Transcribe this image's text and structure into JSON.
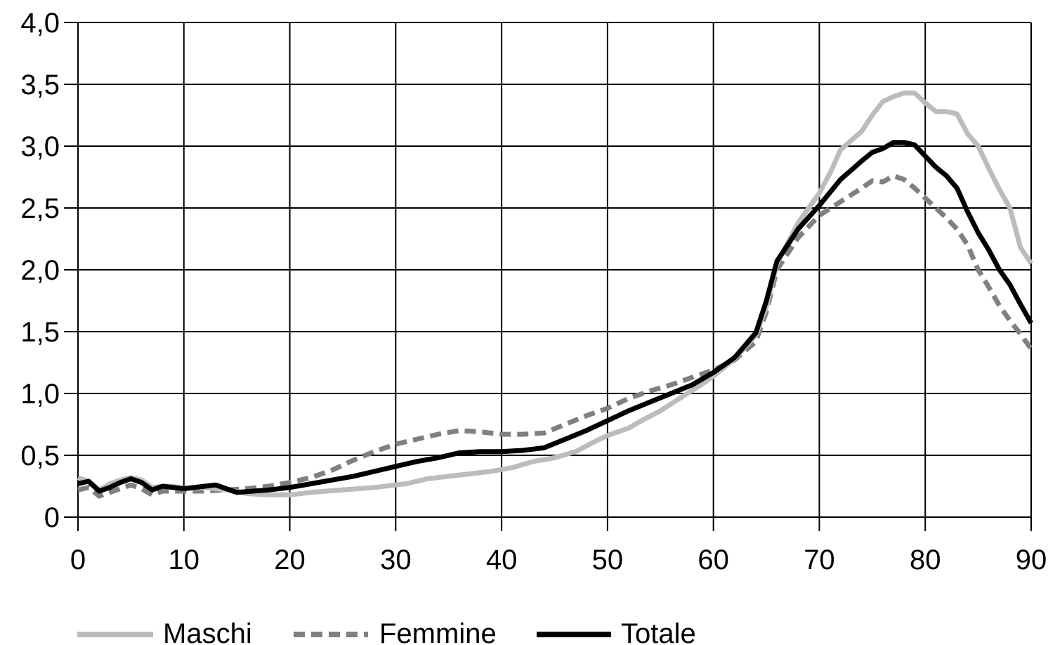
{
  "chart_data": {
    "type": "line",
    "title": "",
    "xlabel": "",
    "ylabel": "",
    "xlim": [
      0,
      90
    ],
    "ylim": [
      0,
      4.0
    ],
    "grid": true,
    "legend_position": "bottom",
    "x_ticks": [
      0,
      10,
      20,
      30,
      40,
      50,
      60,
      70,
      80,
      90
    ],
    "x_tick_labels": [
      "0",
      "10",
      "20",
      "30",
      "40",
      "50",
      "60",
      "70",
      "80",
      "90"
    ],
    "y_ticks": [
      0,
      0.5,
      1.0,
      1.5,
      2.0,
      2.5,
      3.0,
      3.5,
      4.0
    ],
    "y_tick_labels": [
      "0",
      "0,5",
      "1,0",
      "1,5",
      "2,0",
      "2,5",
      "3,0",
      "3,5",
      "4,0"
    ],
    "series": [
      {
        "name": "Maschi",
        "color": "#bcbcbc",
        "style": "solid",
        "points": [
          [
            0,
            0.32
          ],
          [
            1,
            0.29
          ],
          [
            2,
            0.22
          ],
          [
            3,
            0.27
          ],
          [
            4,
            0.3
          ],
          [
            5,
            0.32
          ],
          [
            6,
            0.3
          ],
          [
            7,
            0.24
          ],
          [
            8,
            0.25
          ],
          [
            9,
            0.25
          ],
          [
            10,
            0.23
          ],
          [
            12,
            0.24
          ],
          [
            14,
            0.22
          ],
          [
            16,
            0.19
          ],
          [
            18,
            0.18
          ],
          [
            20,
            0.18
          ],
          [
            22,
            0.2
          ],
          [
            25,
            0.22
          ],
          [
            28,
            0.24
          ],
          [
            30,
            0.26
          ],
          [
            31,
            0.27
          ],
          [
            33,
            0.31
          ],
          [
            35,
            0.33
          ],
          [
            37,
            0.35
          ],
          [
            39,
            0.37
          ],
          [
            41,
            0.4
          ],
          [
            43,
            0.45
          ],
          [
            45,
            0.48
          ],
          [
            47,
            0.53
          ],
          [
            49,
            0.62
          ],
          [
            50,
            0.66
          ],
          [
            52,
            0.72
          ],
          [
            53,
            0.77
          ],
          [
            55,
            0.86
          ],
          [
            57,
            0.97
          ],
          [
            59,
            1.08
          ],
          [
            60,
            1.14
          ],
          [
            62,
            1.28
          ],
          [
            64,
            1.47
          ],
          [
            65,
            1.7
          ],
          [
            66,
            2.05
          ],
          [
            68,
            2.38
          ],
          [
            70,
            2.62
          ],
          [
            71,
            2.78
          ],
          [
            72,
            2.97
          ],
          [
            74,
            3.12
          ],
          [
            75,
            3.25
          ],
          [
            76,
            3.36
          ],
          [
            77,
            3.4
          ],
          [
            78,
            3.43
          ],
          [
            79,
            3.43
          ],
          [
            80,
            3.35
          ],
          [
            81,
            3.28
          ],
          [
            82,
            3.28
          ],
          [
            83,
            3.26
          ],
          [
            84,
            3.1
          ],
          [
            85,
            3.0
          ],
          [
            86,
            2.82
          ],
          [
            87,
            2.65
          ],
          [
            88,
            2.5
          ],
          [
            89,
            2.18
          ],
          [
            90,
            2.05
          ]
        ]
      },
      {
        "name": "Femmine",
        "color": "#808080",
        "style": "dashed",
        "points": [
          [
            0,
            0.22
          ],
          [
            1,
            0.24
          ],
          [
            2,
            0.17
          ],
          [
            3,
            0.2
          ],
          [
            4,
            0.23
          ],
          [
            5,
            0.26
          ],
          [
            6,
            0.23
          ],
          [
            7,
            0.18
          ],
          [
            8,
            0.21
          ],
          [
            10,
            0.21
          ],
          [
            12,
            0.21
          ],
          [
            14,
            0.22
          ],
          [
            16,
            0.23
          ],
          [
            18,
            0.25
          ],
          [
            20,
            0.28
          ],
          [
            22,
            0.32
          ],
          [
            24,
            0.38
          ],
          [
            26,
            0.46
          ],
          [
            28,
            0.53
          ],
          [
            30,
            0.59
          ],
          [
            32,
            0.63
          ],
          [
            34,
            0.67
          ],
          [
            36,
            0.7
          ],
          [
            38,
            0.69
          ],
          [
            40,
            0.67
          ],
          [
            42,
            0.67
          ],
          [
            44,
            0.68
          ],
          [
            46,
            0.75
          ],
          [
            48,
            0.82
          ],
          [
            50,
            0.88
          ],
          [
            52,
            0.96
          ],
          [
            54,
            1.02
          ],
          [
            56,
            1.07
          ],
          [
            58,
            1.13
          ],
          [
            60,
            1.19
          ],
          [
            62,
            1.27
          ],
          [
            64,
            1.42
          ],
          [
            65,
            1.66
          ],
          [
            66,
            2.0
          ],
          [
            68,
            2.26
          ],
          [
            70,
            2.44
          ],
          [
            72,
            2.55
          ],
          [
            74,
            2.66
          ],
          [
            75,
            2.72
          ],
          [
            76,
            2.71
          ],
          [
            77,
            2.76
          ],
          [
            78,
            2.73
          ],
          [
            79,
            2.66
          ],
          [
            80,
            2.58
          ],
          [
            81,
            2.5
          ],
          [
            82,
            2.42
          ],
          [
            83,
            2.33
          ],
          [
            84,
            2.2
          ],
          [
            85,
            2.0
          ],
          [
            86,
            1.86
          ],
          [
            87,
            1.71
          ],
          [
            88,
            1.59
          ],
          [
            89,
            1.48
          ],
          [
            90,
            1.36
          ]
        ]
      },
      {
        "name": "Totale",
        "color": "#000000",
        "style": "solid",
        "points": [
          [
            0,
            0.27
          ],
          [
            1,
            0.29
          ],
          [
            2,
            0.21
          ],
          [
            3,
            0.24
          ],
          [
            4,
            0.28
          ],
          [
            5,
            0.31
          ],
          [
            6,
            0.28
          ],
          [
            7,
            0.22
          ],
          [
            8,
            0.25
          ],
          [
            9,
            0.24
          ],
          [
            10,
            0.23
          ],
          [
            12,
            0.25
          ],
          [
            13,
            0.26
          ],
          [
            15,
            0.2
          ],
          [
            18,
            0.22
          ],
          [
            20,
            0.24
          ],
          [
            22,
            0.27
          ],
          [
            24,
            0.3
          ],
          [
            26,
            0.33
          ],
          [
            28,
            0.37
          ],
          [
            30,
            0.41
          ],
          [
            32,
            0.45
          ],
          [
            34,
            0.48
          ],
          [
            36,
            0.52
          ],
          [
            38,
            0.53
          ],
          [
            40,
            0.53
          ],
          [
            42,
            0.54
          ],
          [
            44,
            0.56
          ],
          [
            46,
            0.63
          ],
          [
            48,
            0.7
          ],
          [
            50,
            0.78
          ],
          [
            52,
            0.86
          ],
          [
            54,
            0.93
          ],
          [
            56,
            1.0
          ],
          [
            58,
            1.07
          ],
          [
            60,
            1.17
          ],
          [
            62,
            1.29
          ],
          [
            64,
            1.49
          ],
          [
            65,
            1.75
          ],
          [
            66,
            2.07
          ],
          [
            68,
            2.33
          ],
          [
            70,
            2.52
          ],
          [
            72,
            2.73
          ],
          [
            74,
            2.88
          ],
          [
            75,
            2.95
          ],
          [
            76,
            2.98
          ],
          [
            77,
            3.03
          ],
          [
            78,
            3.03
          ],
          [
            79,
            3.01
          ],
          [
            80,
            2.92
          ],
          [
            81,
            2.83
          ],
          [
            82,
            2.76
          ],
          [
            83,
            2.66
          ],
          [
            84,
            2.47
          ],
          [
            85,
            2.3
          ],
          [
            86,
            2.16
          ],
          [
            87,
            2.0
          ],
          [
            88,
            1.88
          ],
          [
            89,
            1.72
          ],
          [
            90,
            1.57
          ]
        ]
      }
    ]
  }
}
